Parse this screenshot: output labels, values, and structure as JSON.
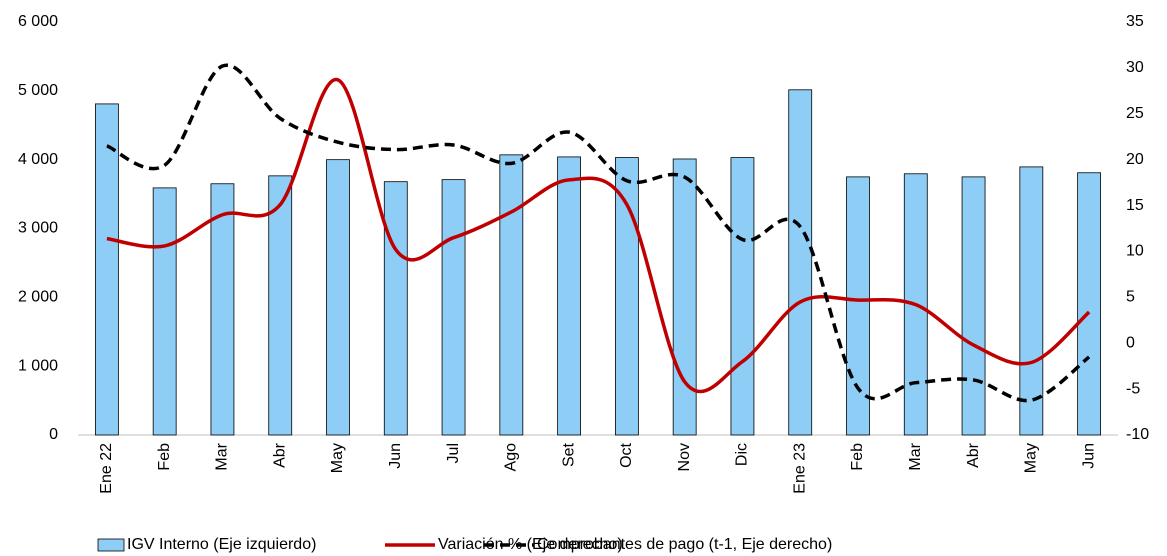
{
  "chart_data": {
    "type": "bar_line",
    "categories": [
      "Ene 22",
      "Feb",
      "Mar",
      "Abr",
      "May",
      "Jun",
      "Jul",
      "Ago",
      "Set",
      "Oct",
      "Nov",
      "Dic",
      "Ene 23",
      "Feb",
      "Mar",
      "Abr",
      "May",
      "Jun"
    ],
    "series": [
      {
        "name": "IGV Interno (Eje izquierdo)",
        "type": "bar",
        "color": "#8ecdf5",
        "values": [
          4810,
          3590,
          3650,
          3765,
          4000,
          3680,
          3710,
          4070,
          4040,
          4030,
          4010,
          4030,
          5015,
          3750,
          3795,
          3750,
          3895,
          3810
        ]
      },
      {
        "name": "Variación % (Eje derecho)",
        "type": "line",
        "axis": "y2",
        "color": "#c00000",
        "values": [
          11.4,
          10.6,
          14.0,
          15.1,
          28.7,
          10.2,
          11.5,
          14.3,
          17.8,
          15.1,
          -4.2,
          -2.0,
          4.5,
          4.7,
          4.2,
          -0.2,
          -2.1,
          3.4
        ]
      },
      {
        "name": "Comprobantes de pago (t-1, Eje derecho)",
        "type": "line",
        "axis": "y2",
        "dashed": true,
        "color": "#000000",
        "values": [
          21.5,
          19.4,
          30.2,
          24.5,
          21.9,
          21.1,
          21.6,
          19.6,
          23.0,
          17.7,
          18.1,
          11.3,
          12.7,
          -4.9,
          -4.3,
          -4.0,
          -6.2,
          -1.5
        ]
      }
    ],
    "ylim": [
      0,
      6000
    ],
    "yticks": [
      0,
      {
        "value": 1000,
        "label": "1 000"
      },
      {
        "value": 2000,
        "label": "2 000"
      },
      {
        "value": 3000,
        "label": "3 000"
      },
      {
        "value": 4000,
        "label": "4 000"
      },
      {
        "value": 5000,
        "label": "5 000"
      },
      {
        "value": 6000,
        "label": "6 000"
      }
    ],
    "y2lim": [
      -10,
      35
    ],
    "y2ticks": [
      -10,
      -5,
      0,
      5,
      10,
      15,
      20,
      25,
      30,
      35
    ],
    "legend": "bottom"
  }
}
